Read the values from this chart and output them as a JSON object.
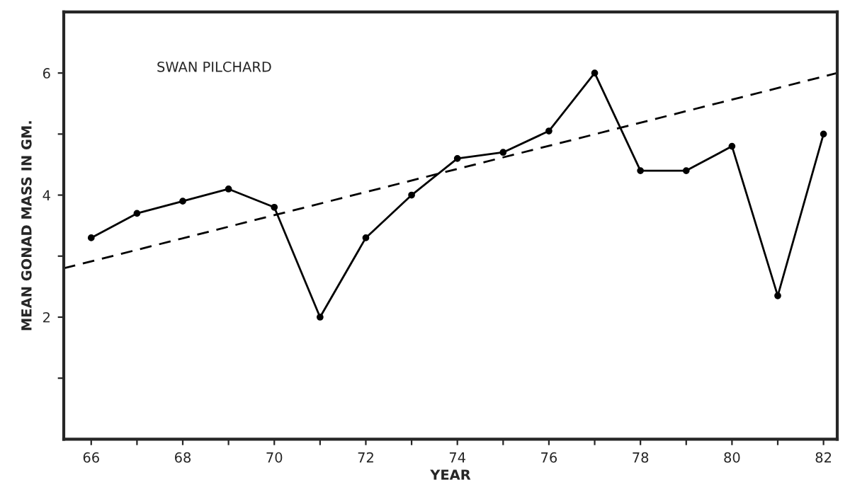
{
  "chart_data": {
    "type": "line",
    "xlabel": "YEAR",
    "ylabel": "MEAN GONAD MASS IN GM.",
    "annotations": [
      "SWAN PILCHARD"
    ],
    "series": [
      {
        "x": [
          66,
          67,
          68,
          69,
          70,
          71,
          72,
          73,
          74,
          75,
          76,
          77,
          78,
          79,
          80,
          81,
          82
        ],
        "values": [
          3.3,
          3.7,
          3.9,
          4.1,
          3.8,
          2.0,
          3.3,
          4.0,
          4.6,
          4.7,
          5.05,
          6.0,
          4.4,
          4.4,
          4.8,
          2.35,
          5.0
        ],
        "color": "#000000",
        "marker": "circle",
        "line_style": "solid"
      },
      {
        "type": "line",
        "x": [
          65.4,
          82.3
        ],
        "values": [
          2.8,
          6.0
        ],
        "color": "#000000",
        "marker": "none",
        "line_style": "dashed"
      }
    ],
    "xlim": [
      65.4,
      82.3
    ],
    "xticks": [
      66,
      {
        "value": 67,
        "label": null
      },
      68,
      {
        "value": 69,
        "label": null
      },
      70,
      {
        "value": 71,
        "label": null
      },
      72,
      {
        "value": 73,
        "label": null
      },
      74,
      {
        "value": 75,
        "label": null
      },
      76,
      {
        "value": 77,
        "label": null
      },
      78,
      {
        "value": 79,
        "label": null
      },
      80,
      {
        "value": 81,
        "label": null
      },
      82
    ],
    "ylim": [
      0,
      7
    ],
    "yticks": [
      {
        "value": 1,
        "label": null
      },
      2,
      {
        "value": 3,
        "label": null
      },
      4,
      {
        "value": 5,
        "label": null
      },
      6
    ],
    "grid": false,
    "legend": false
  }
}
